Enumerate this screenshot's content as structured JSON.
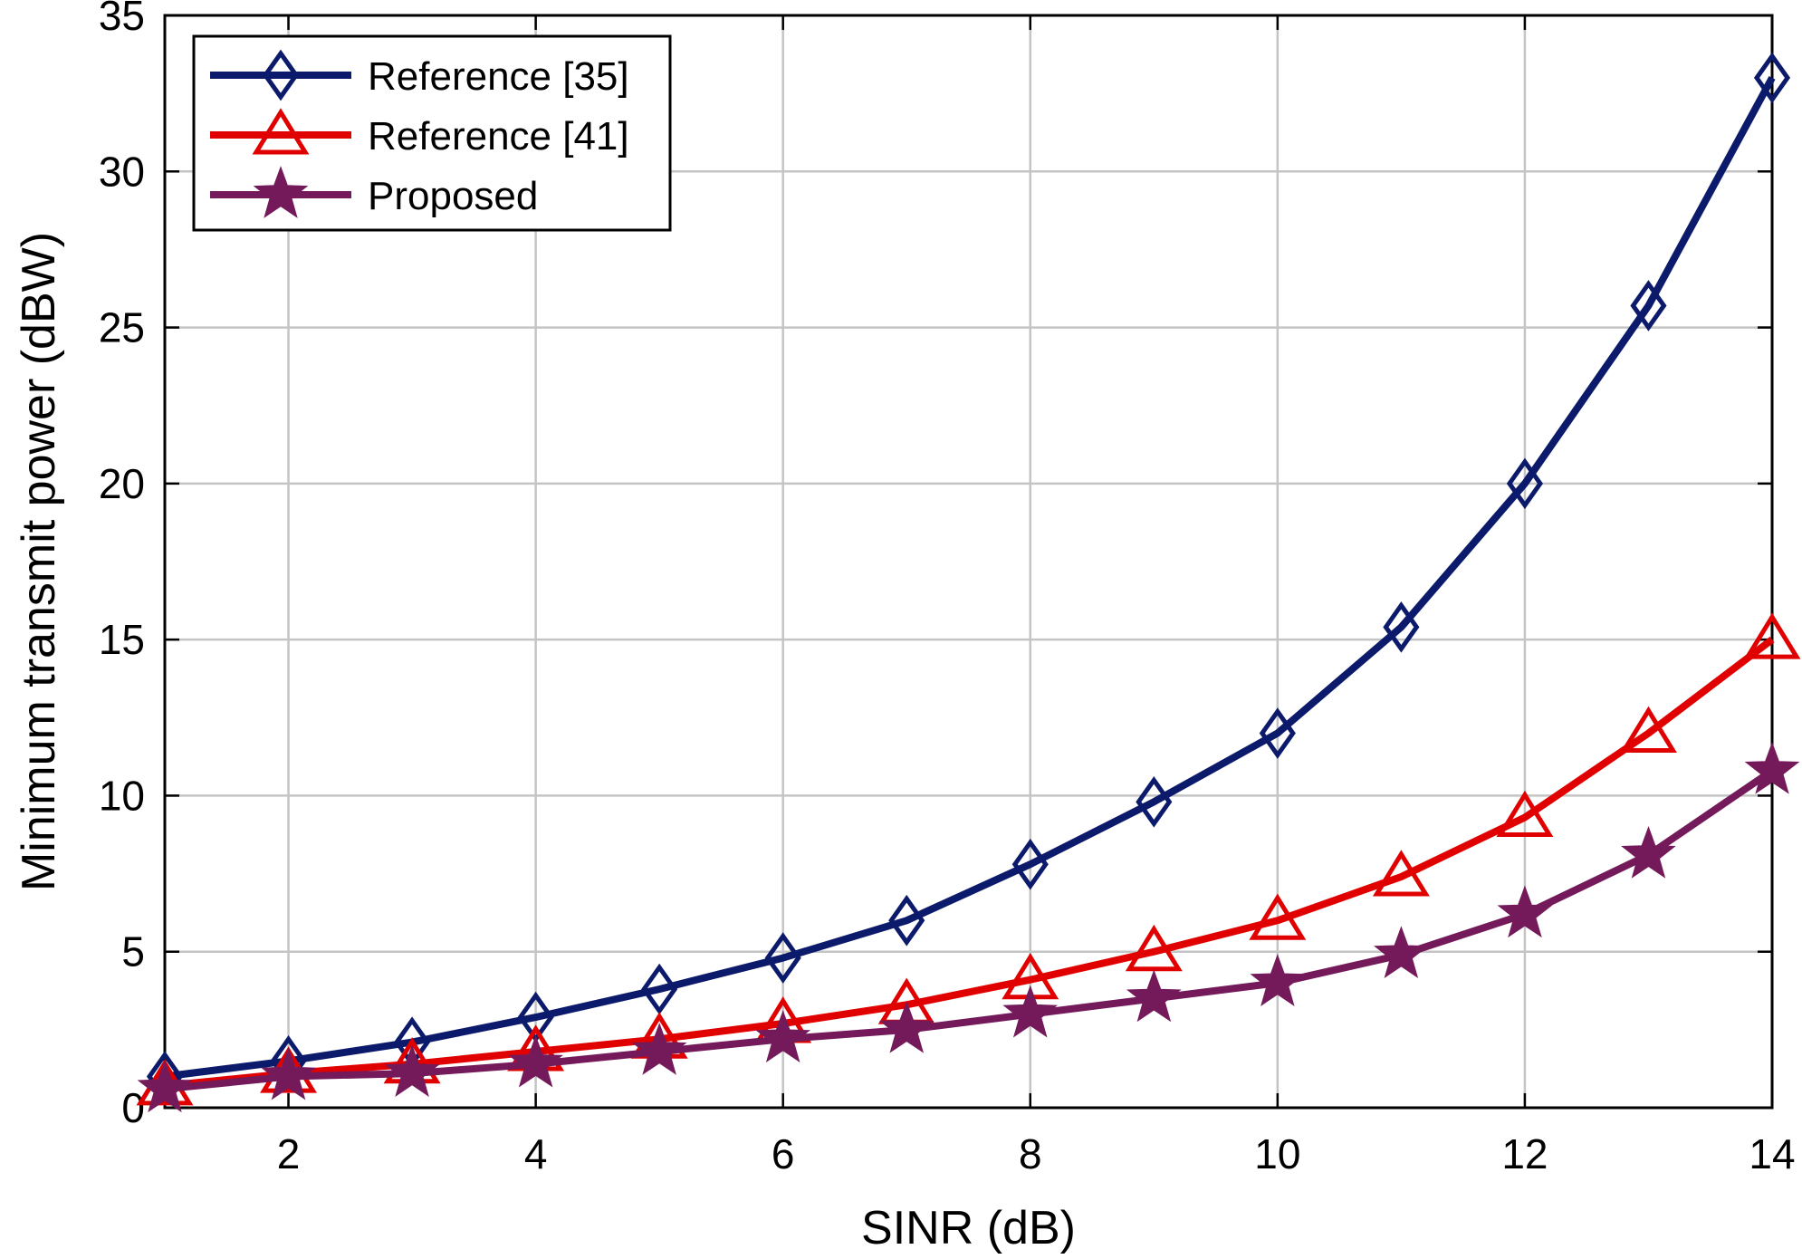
{
  "chart_data": {
    "type": "line",
    "title": "",
    "xlabel": "SINR (dB)",
    "ylabel": "Minimum transmit power (dBW)",
    "xlim": [
      1,
      14
    ],
    "ylim": [
      0,
      35
    ],
    "grid": true,
    "legend_position": "top-left",
    "x": [
      1,
      2,
      3,
      4,
      5,
      6,
      7,
      8,
      9,
      10,
      11,
      12,
      13,
      14
    ],
    "x_ticks": [
      2,
      4,
      6,
      8,
      10,
      12,
      14
    ],
    "x_tick_labels": [
      "2",
      "4",
      "6",
      "8",
      "10",
      "12",
      "14"
    ],
    "y_ticks": [
      0,
      5,
      10,
      15,
      20,
      25,
      30,
      35
    ],
    "y_tick_labels": [
      "0",
      "5",
      "10",
      "15",
      "20",
      "25",
      "30",
      "35"
    ],
    "series": [
      {
        "name": "Reference [35]",
        "color": "#0c1a6b",
        "marker": "diamond",
        "values": [
          1.0,
          1.5,
          2.1,
          2.9,
          3.8,
          4.8,
          6.0,
          7.8,
          9.8,
          12.0,
          15.4,
          20.0,
          25.7,
          33.0
        ]
      },
      {
        "name": "Reference [41]",
        "color": "#e00000",
        "marker": "triangle",
        "values": [
          0.7,
          1.1,
          1.4,
          1.8,
          2.2,
          2.7,
          3.3,
          4.1,
          5.0,
          6.0,
          7.4,
          9.3,
          12.0,
          15.0
        ]
      },
      {
        "name": "Proposed",
        "color": "#741a5a",
        "marker": "star",
        "values": [
          0.6,
          1.0,
          1.1,
          1.4,
          1.8,
          2.2,
          2.5,
          3.0,
          3.5,
          4.0,
          4.9,
          6.2,
          8.1,
          10.8
        ]
      }
    ]
  }
}
